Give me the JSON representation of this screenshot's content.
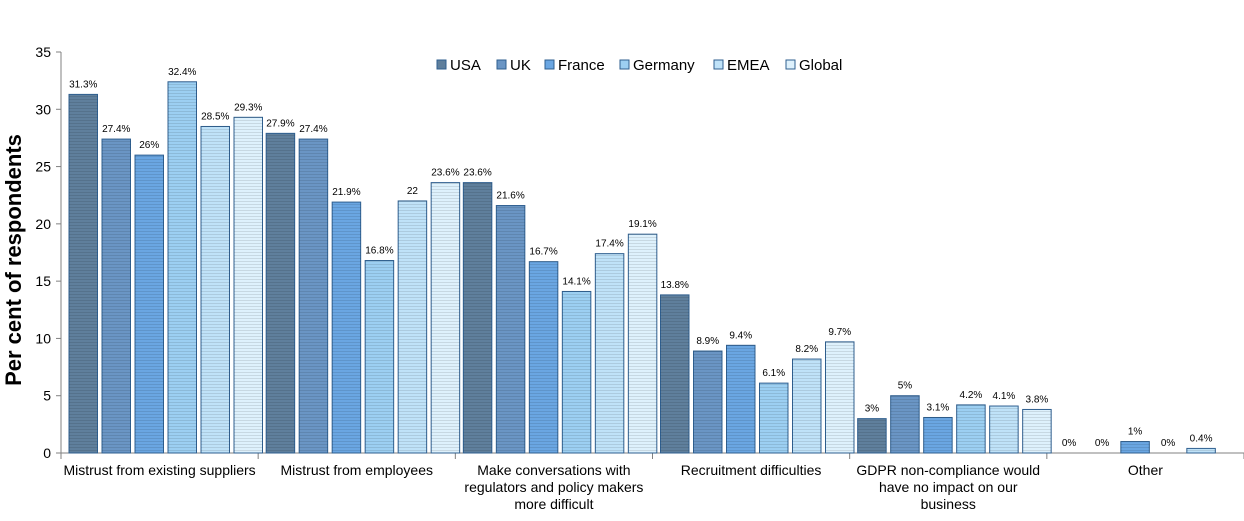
{
  "chart_data": {
    "type": "bar",
    "ylabel": "Per cent of respondents",
    "xlabel": "",
    "ylim": [
      0,
      35
    ],
    "yticks": [
      0,
      5,
      10,
      15,
      20,
      25,
      30,
      35
    ],
    "grid": false,
    "legend_position": "top-center",
    "categories": [
      [
        "Mistrust from existing suppliers"
      ],
      [
        "Mistrust from employees"
      ],
      [
        "Make conversations with",
        "regulators and policy makers",
        "more difficult"
      ],
      [
        "Recruitment difficulties"
      ],
      [
        "GDPR non-compliance would",
        "have no impact on our",
        "business"
      ],
      [
        "Other"
      ]
    ],
    "series": [
      {
        "name": "USA",
        "color": "#5f7f9c",
        "values": [
          31.3,
          27.9,
          23.6,
          13.8,
          3,
          0
        ],
        "labels": [
          "31.3%",
          "27.9%",
          "23.6%",
          "13.8%",
          "3%",
          "0%"
        ]
      },
      {
        "name": "UK",
        "color": "#6a95c4",
        "values": [
          27.4,
          27.4,
          21.6,
          8.9,
          5,
          0
        ],
        "labels": [
          "27.4%",
          "27.4%",
          "21.6%",
          "8.9%",
          "5%",
          "0%"
        ]
      },
      {
        "name": "France",
        "color": "#6aa6e2",
        "values": [
          26,
          21.9,
          16.7,
          9.4,
          3.1,
          1
        ],
        "labels": [
          "26%",
          "21.9%",
          "16.7%",
          "9.4%",
          "3.1%",
          "1%"
        ]
      },
      {
        "name": "Germany",
        "color": "#9ccff2",
        "values": [
          32.4,
          16.8,
          14.1,
          6.1,
          4.2,
          0
        ],
        "labels": [
          "32.4%",
          "16.8%",
          "14.1%",
          "6.1%",
          "4.2%",
          "0%"
        ]
      },
      {
        "name": "EMEA",
        "color": "#bfe2f8",
        "values": [
          28.5,
          22,
          17.4,
          8.2,
          4.1,
          0.4
        ],
        "labels": [
          "28.5%",
          "22",
          "17.4%",
          "8.2%",
          "4.1%",
          "0.4%"
        ]
      },
      {
        "name": "Global",
        "color": "#def1fc",
        "values": [
          29.3,
          23.6,
          19.1,
          9.7,
          3.8,
          null
        ],
        "labels": [
          "29.3%",
          "23.6%",
          "19.1%",
          "9.7%",
          "3.8%",
          null
        ]
      }
    ]
  }
}
